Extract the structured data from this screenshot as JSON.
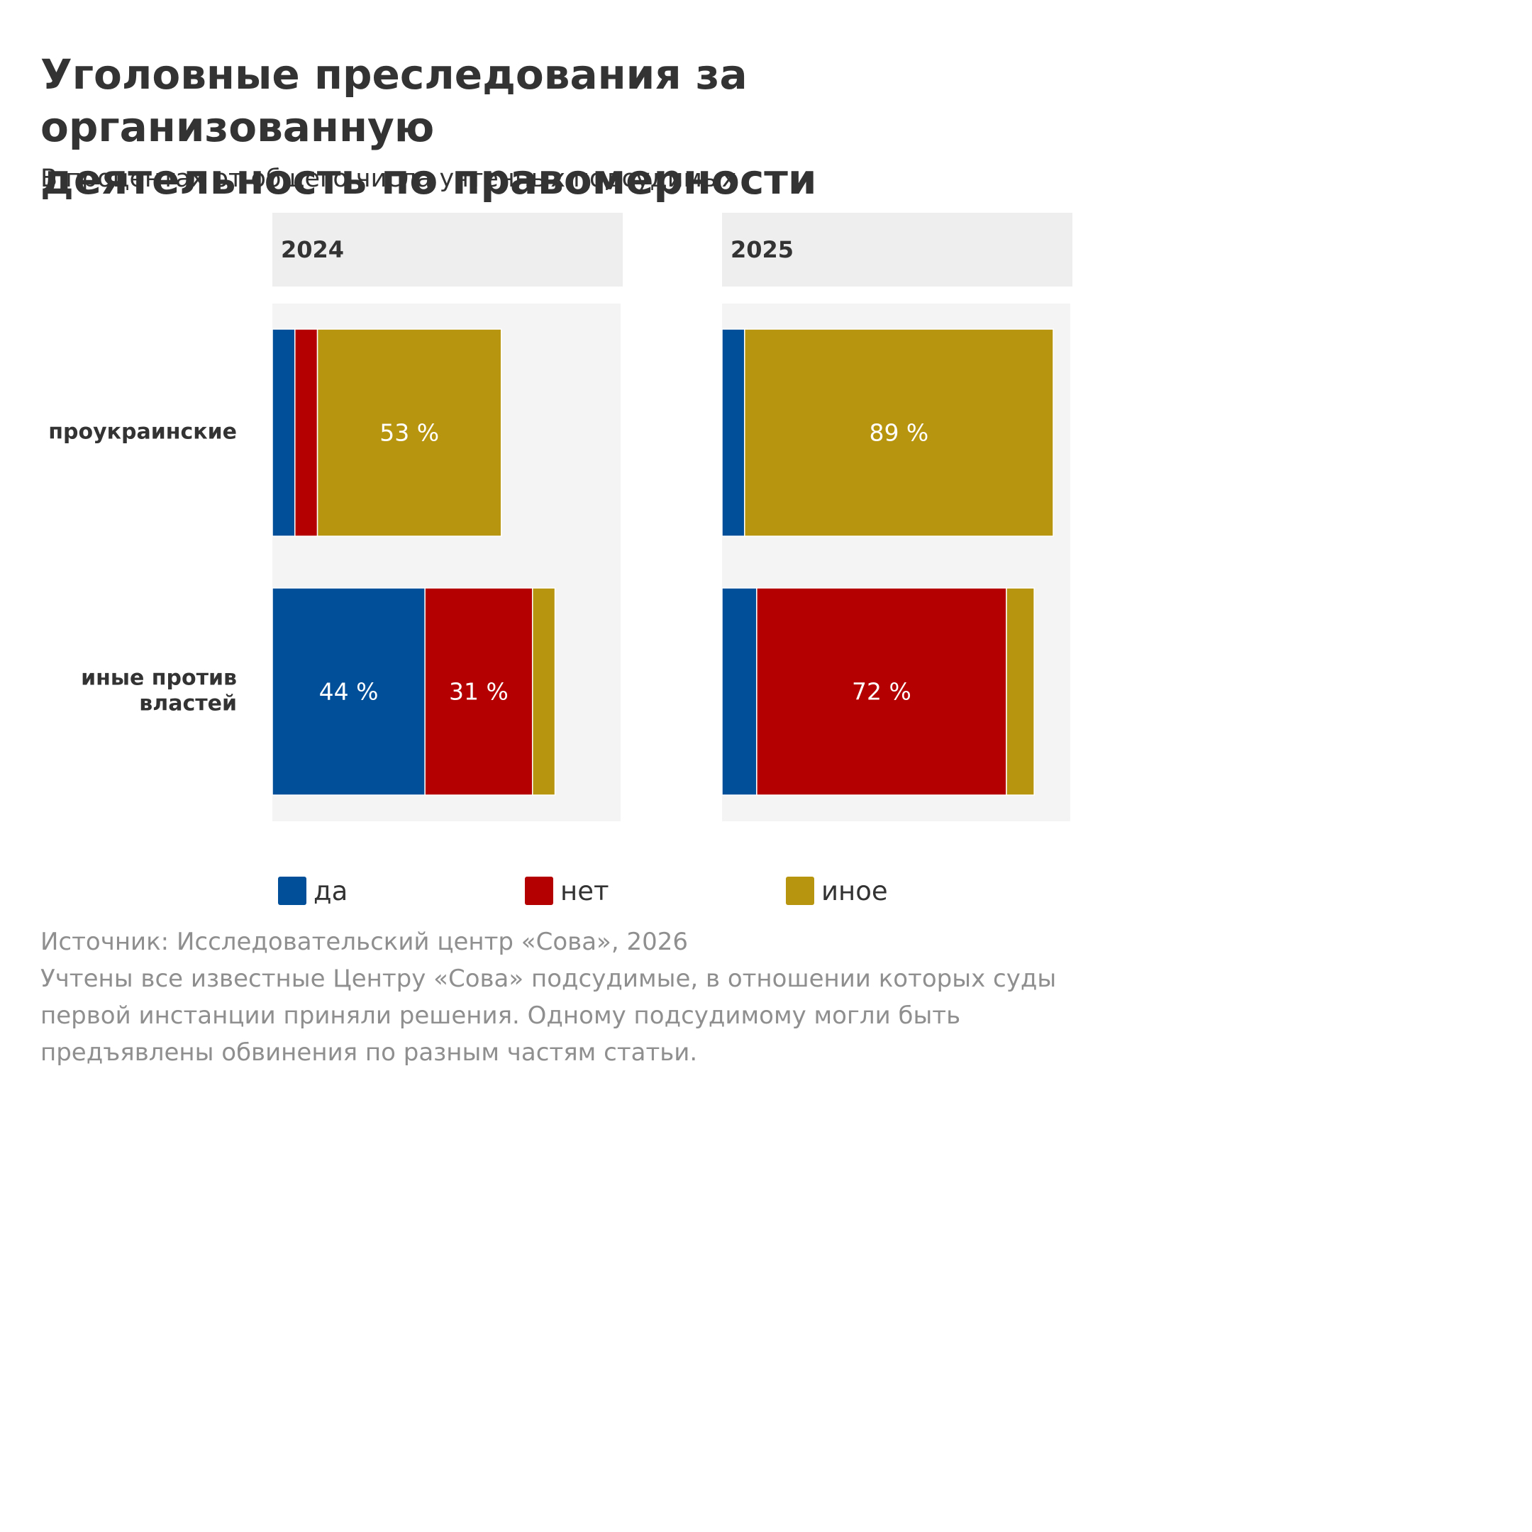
{
  "title_lines": [
    "Уголовные преследования за организованную",
    "деятельность по правомерности"
  ],
  "subtitle": "В процентах от общего числа учтенных подсудимых",
  "legend": [
    {
      "label": "да",
      "color": "#004f98"
    },
    {
      "label": "нет",
      "color": "#b40000"
    },
    {
      "label": "иное",
      "color": "#b7950f"
    }
  ],
  "footer": {
    "source": "Источник: Исследовательский центр «Сова», 2026",
    "note_lines": [
      "Учтены все известные Центру «Сова» подсудимые, в отношении которых суды",
      "первой инстанции приняли решения. Одному подсудимому могли быть",
      "предъявлены обвинения по разным частям статьи."
    ]
  },
  "chart_data": {
    "type": "bar",
    "orientation": "horizontal",
    "stacked": true,
    "xlim": [
      0,
      100
    ],
    "categories": [
      "проукраинские",
      "иные против властей"
    ],
    "category_label_lines": [
      [
        "проукраинские"
      ],
      [
        "иные против",
        "властей"
      ]
    ],
    "panels": [
      {
        "name": "2024",
        "series": [
          {
            "name": "да",
            "values": [
              6.5,
              44
            ]
          },
          {
            "name": "нет",
            "values": [
              6.5,
              31
            ]
          },
          {
            "name": "иное",
            "values": [
              53,
              6.5
            ]
          }
        ],
        "labels": [
          [
            null,
            null,
            "53 %"
          ],
          [
            "44 %",
            "31 %",
            null
          ]
        ]
      },
      {
        "name": "2025",
        "series": [
          {
            "name": "да",
            "values": [
              6.5,
              10
            ]
          },
          {
            "name": "нет",
            "values": [
              0,
              72
            ]
          },
          {
            "name": "иное",
            "values": [
              89,
              8
            ]
          }
        ],
        "labels": [
          [
            null,
            null,
            "89 %"
          ],
          [
            null,
            "72 %",
            null
          ]
        ]
      }
    ]
  }
}
